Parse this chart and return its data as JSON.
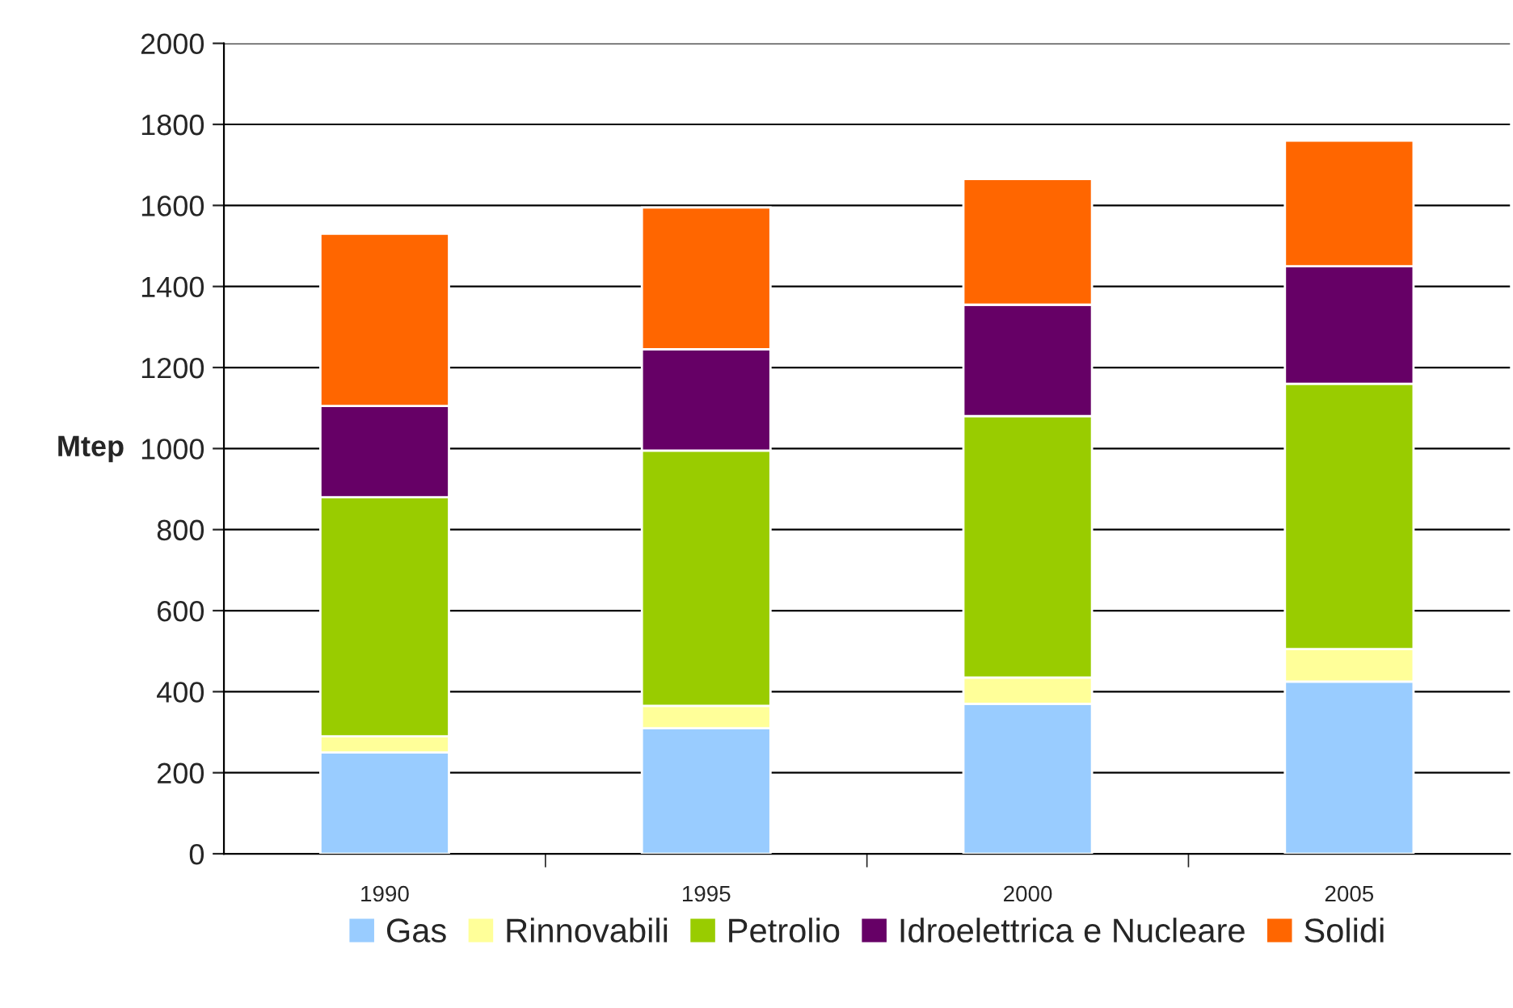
{
  "chart_data": {
    "type": "bar",
    "stacked": true,
    "ylabel": "Mtep",
    "categories": [
      "1990",
      "1995",
      "2000",
      "2005"
    ],
    "series": [
      {
        "name": "Gas",
        "color": "#99ccff",
        "values": [
          250,
          310,
          370,
          425
        ]
      },
      {
        "name": "Rinnovabili",
        "color": "#ffff99",
        "values": [
          40,
          55,
          65,
          80
        ]
      },
      {
        "name": "Petrolio",
        "color": "#99cc00",
        "values": [
          590,
          630,
          645,
          655
        ]
      },
      {
        "name": "Idroelettrica e Nucleare",
        "color": "#660066",
        "values": [
          225,
          250,
          275,
          290
        ]
      },
      {
        "name": "Solidi",
        "color": "#ff6600",
        "values": [
          425,
          350,
          310,
          310
        ]
      }
    ],
    "ylim": [
      0,
      2000
    ],
    "yticks": [
      0,
      200,
      400,
      600,
      800,
      1000,
      1200,
      1400,
      1600,
      1800,
      2000
    ],
    "grid": "y",
    "legend": "bottom"
  }
}
